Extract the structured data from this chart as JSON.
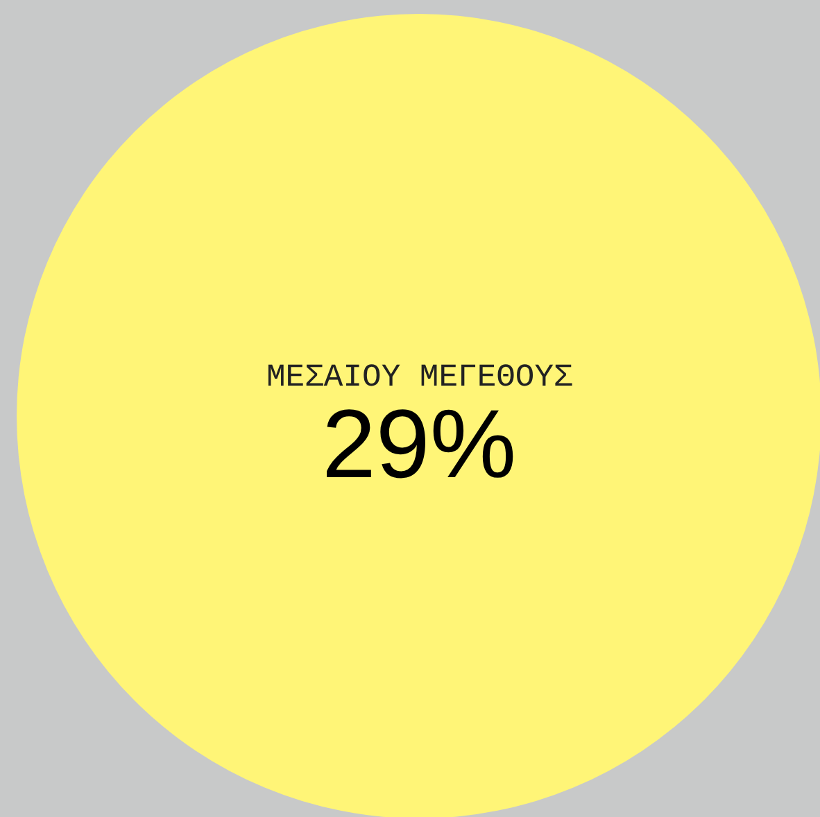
{
  "chart_data": {
    "type": "other",
    "categories": [
      "ΜΕΣΑΙΟΥ ΜΕΓΕΘΟΥΣ"
    ],
    "values": [
      29
    ],
    "value_labels": [
      "29%"
    ],
    "color": "#fff577"
  }
}
